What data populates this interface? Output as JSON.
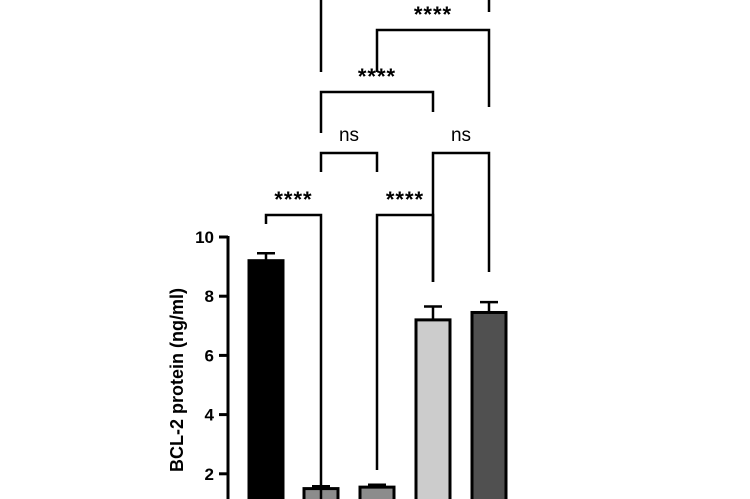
{
  "chart_data": {
    "type": "bar",
    "title": "",
    "xlabel": "",
    "ylabel": "BCL-2 protein (ng/ml)",
    "ylim": [
      0,
      10
    ],
    "yticks": [
      2,
      4,
      6,
      8,
      10
    ],
    "grid": false,
    "categories": [
      "",
      "",
      "",
      "",
      ""
    ],
    "values": [
      9.2,
      1.5,
      1.55,
      7.2,
      7.45
    ],
    "errors": [
      0.25,
      0.08,
      0.08,
      0.45,
      0.35
    ],
    "colors": [
      "#000000",
      "#8c8c8c",
      "#8c8c8c",
      "#cccccc",
      "#505050"
    ],
    "comparisons": [
      {
        "from": 0,
        "to": 1,
        "label": "****"
      },
      {
        "from": 2,
        "to": 3,
        "label": "****"
      },
      {
        "from": 1,
        "to": 2,
        "label": "ns"
      },
      {
        "from": 3,
        "to": 4,
        "label": "ns"
      },
      {
        "from": 1,
        "to": 3,
        "label": "****"
      },
      {
        "from": 2,
        "to": 4,
        "label": "****"
      },
      {
        "from": 1,
        "to": 4,
        "label": ""
      }
    ]
  }
}
